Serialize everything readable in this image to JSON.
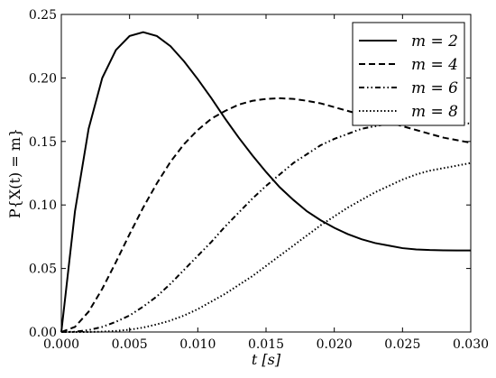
{
  "chart_data": {
    "type": "line",
    "xlabel": "t [s]",
    "ylabel": "P{X(t) = m}",
    "xlim": [
      0.0,
      0.03
    ],
    "ylim": [
      0.0,
      0.25
    ],
    "xticks": [
      "0.000",
      "0.005",
      "0.010",
      "0.015",
      "0.020",
      "0.025",
      "0.030"
    ],
    "yticks": [
      "0.00",
      "0.05",
      "0.10",
      "0.15",
      "0.20",
      "0.25"
    ],
    "grid": false,
    "legend_position": "top-right",
    "series": [
      {
        "name": "m = 2",
        "style": "solid",
        "x": [
          0.0,
          0.001,
          0.002,
          0.003,
          0.004,
          0.005,
          0.006,
          0.007,
          0.008,
          0.009,
          0.01,
          0.011,
          0.012,
          0.013,
          0.014,
          0.015,
          0.016,
          0.017,
          0.018,
          0.019,
          0.02,
          0.021,
          0.022,
          0.023,
          0.024,
          0.025,
          0.026,
          0.027,
          0.028,
          0.029,
          0.03
        ],
        "y": [
          0.0,
          0.095,
          0.16,
          0.2,
          0.222,
          0.233,
          0.236,
          0.233,
          0.225,
          0.213,
          0.199,
          0.184,
          0.168,
          0.153,
          0.139,
          0.126,
          0.114,
          0.104,
          0.095,
          0.088,
          0.082,
          0.077,
          0.073,
          0.07,
          0.068,
          0.066,
          0.065,
          0.0645,
          0.0643,
          0.0642,
          0.0642
        ]
      },
      {
        "name": "m = 4",
        "style": "dashed",
        "x": [
          0.0,
          0.001,
          0.002,
          0.003,
          0.004,
          0.005,
          0.006,
          0.007,
          0.008,
          0.009,
          0.01,
          0.011,
          0.012,
          0.013,
          0.014,
          0.015,
          0.016,
          0.017,
          0.018,
          0.019,
          0.02,
          0.021,
          0.022,
          0.023,
          0.024,
          0.025,
          0.026,
          0.027,
          0.028,
          0.029,
          0.03
        ],
        "y": [
          0.0,
          0.004,
          0.016,
          0.034,
          0.055,
          0.077,
          0.098,
          0.117,
          0.134,
          0.148,
          0.159,
          0.168,
          0.174,
          0.179,
          0.182,
          0.1835,
          0.184,
          0.1835,
          0.182,
          0.18,
          0.177,
          0.174,
          0.171,
          0.168,
          0.165,
          0.162,
          0.159,
          0.156,
          0.153,
          0.151,
          0.149
        ]
      },
      {
        "name": "m = 6",
        "style": "dash-dot-dot",
        "x": [
          0.0,
          0.001,
          0.002,
          0.003,
          0.004,
          0.005,
          0.006,
          0.007,
          0.008,
          0.009,
          0.01,
          0.011,
          0.012,
          0.013,
          0.014,
          0.015,
          0.016,
          0.017,
          0.018,
          0.019,
          0.02,
          0.021,
          0.022,
          0.023,
          0.024,
          0.025,
          0.026,
          0.027,
          0.028,
          0.029,
          0.03
        ],
        "y": [
          0.0,
          0.0002,
          0.0015,
          0.004,
          0.008,
          0.013,
          0.02,
          0.028,
          0.038,
          0.049,
          0.06,
          0.071,
          0.083,
          0.094,
          0.105,
          0.115,
          0.124,
          0.133,
          0.14,
          0.147,
          0.152,
          0.156,
          0.16,
          0.162,
          0.164,
          0.165,
          0.166,
          0.166,
          0.1655,
          0.165,
          0.164
        ]
      },
      {
        "name": "m = 8",
        "style": "dotted",
        "x": [
          0.0,
          0.001,
          0.002,
          0.003,
          0.004,
          0.005,
          0.006,
          0.007,
          0.008,
          0.009,
          0.01,
          0.011,
          0.012,
          0.013,
          0.014,
          0.015,
          0.016,
          0.017,
          0.018,
          0.019,
          0.02,
          0.021,
          0.022,
          0.023,
          0.024,
          0.025,
          0.026,
          0.027,
          0.028,
          0.029,
          0.03
        ],
        "y": [
          0.0,
          0.0,
          0.0,
          0.0003,
          0.0008,
          0.0018,
          0.0035,
          0.006,
          0.009,
          0.013,
          0.018,
          0.024,
          0.03,
          0.037,
          0.044,
          0.052,
          0.06,
          0.068,
          0.076,
          0.084,
          0.091,
          0.098,
          0.104,
          0.11,
          0.115,
          0.12,
          0.124,
          0.127,
          0.129,
          0.131,
          0.133
        ]
      }
    ]
  },
  "colors": {
    "line": "#000000",
    "background": "#ffffff"
  }
}
